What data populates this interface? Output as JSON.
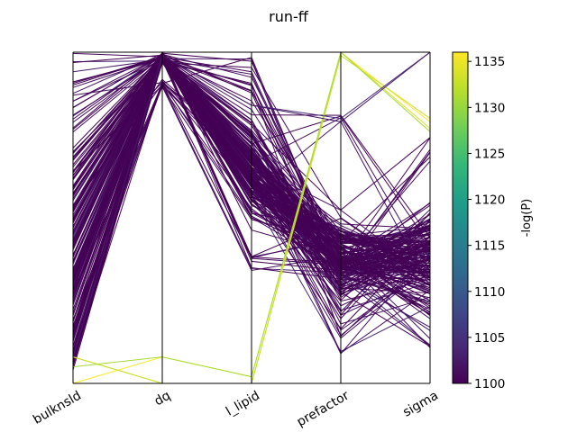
{
  "chart_data": {
    "type": "parallel-coordinates",
    "title": "run-ff",
    "axes": [
      "bulknsld",
      "dq",
      "l_lipid",
      "prefactor",
      "sigma"
    ],
    "colorbar": {
      "label": "-log(P)",
      "min": 1100,
      "max": 1136,
      "ticks": [
        1100,
        1105,
        1110,
        1115,
        1120,
        1125,
        1130,
        1135
      ],
      "colormap": [
        "#440154",
        "#482878",
        "#3e4989",
        "#31688e",
        "#26828e",
        "#1f9e89",
        "#35b779",
        "#6ece58",
        "#b5de2b",
        "#fde725"
      ]
    },
    "highlight_lines": [
      {
        "cost": 1136,
        "values": [
          0.0,
          0.08,
          0.02,
          1.0,
          0.79
        ]
      },
      {
        "cost": 1134,
        "values": [
          0.08,
          0.0,
          0.0,
          1.0,
          0.77
        ]
      },
      {
        "cost": 1133,
        "values": [
          0.08,
          0.0,
          0.0,
          0.99,
          0.8
        ]
      },
      {
        "cost": 1131,
        "values": [
          0.05,
          0.08,
          0.02,
          1.0,
          0.76
        ]
      },
      {
        "cost": 1104,
        "values": [
          0.08,
          0.99,
          0.84,
          0.8,
          1.0
        ]
      },
      {
        "cost": 1102,
        "values": [
          0.08,
          0.99,
          0.84,
          0.79,
          1.0
        ]
      }
    ],
    "line_count": 200,
    "seed": 7
  }
}
